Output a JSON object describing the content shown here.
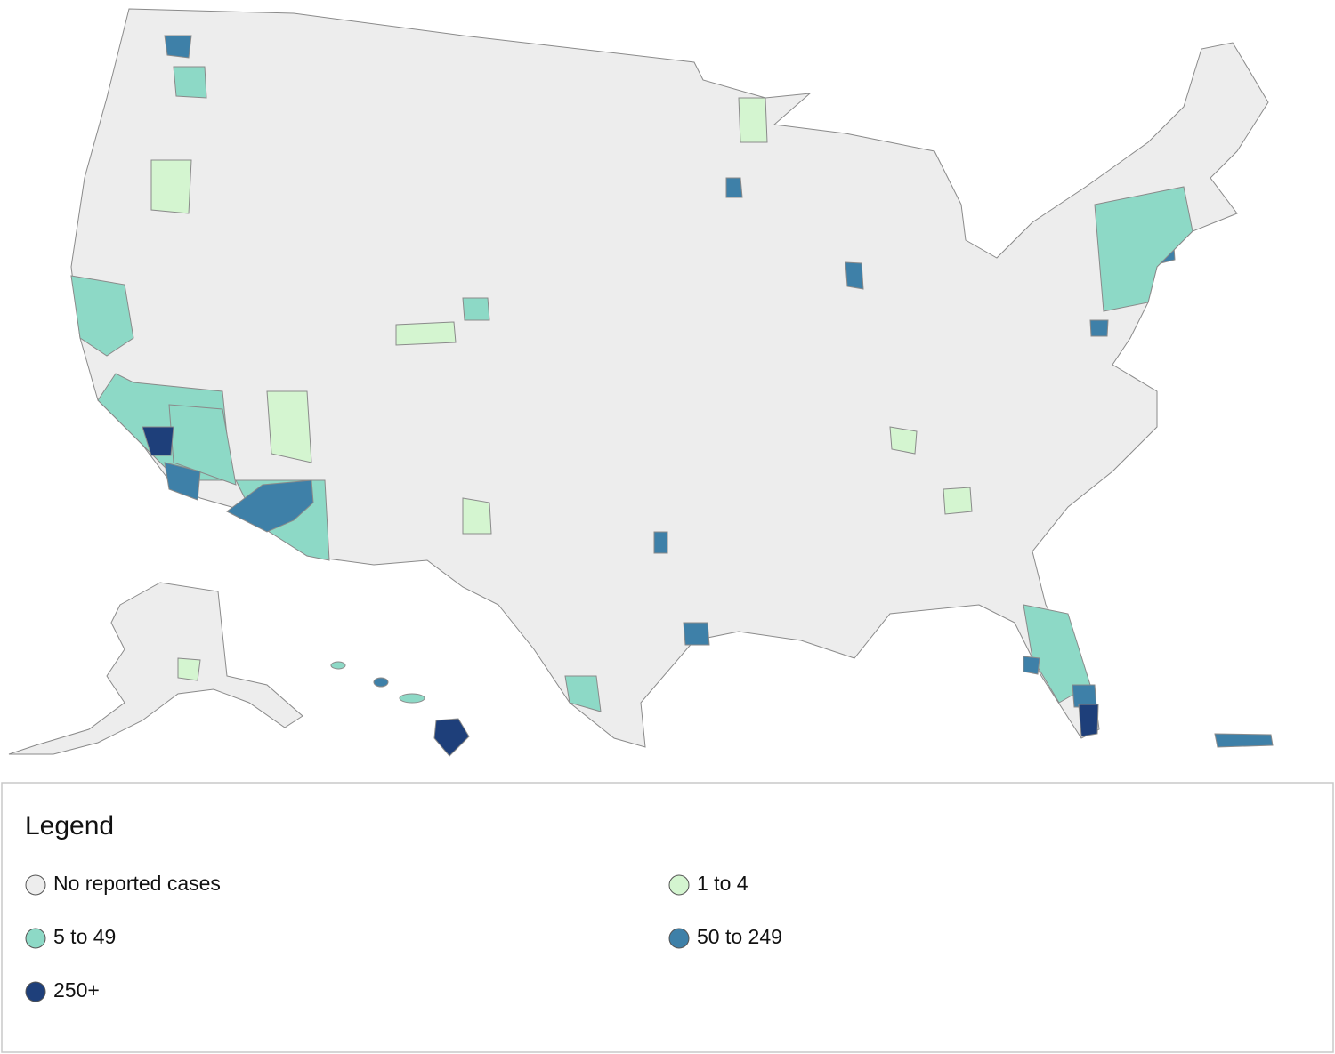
{
  "legend": {
    "title": "Legend",
    "items": [
      {
        "label": "No reported cases",
        "color": "#ededed"
      },
      {
        "label": "1 to 4",
        "color": "#d4f5d0"
      },
      {
        "label": "5 to 49",
        "color": "#8dd9c6"
      },
      {
        "label": "50 to 249",
        "color": "#3e80a8"
      },
      {
        "label": "250+",
        "color": "#1e3f7a"
      }
    ]
  }
}
